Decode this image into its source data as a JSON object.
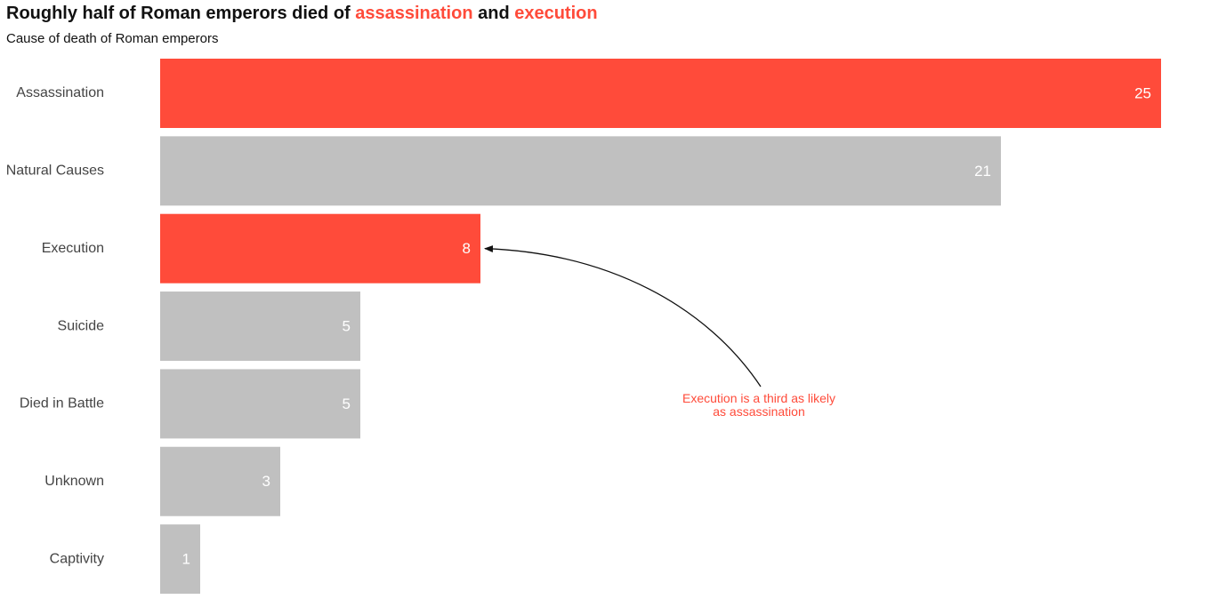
{
  "chart_data": {
    "type": "bar",
    "orientation": "horizontal",
    "title": {
      "parts": [
        {
          "text": "Roughly half of Roman emperors died of ",
          "highlight": false
        },
        {
          "text": "assassination",
          "highlight": true
        },
        {
          "text": " and ",
          "highlight": false
        },
        {
          "text": "execution",
          "highlight": true
        }
      ]
    },
    "subtitle": "Cause of death of Roman emperors",
    "categories": [
      "Assassination",
      "Natural Causes",
      "Execution",
      "Suicide",
      "Died in Battle",
      "Unknown",
      "Captivity"
    ],
    "values": [
      25,
      21,
      8,
      5,
      5,
      3,
      1
    ],
    "highlighted": [
      true,
      false,
      true,
      false,
      false,
      false,
      false
    ],
    "xlim": [
      0,
      25
    ],
    "grid": false,
    "annotation": {
      "target_category": "Execution",
      "text_lines": [
        "Execution is a third as likely",
        "as assassination"
      ]
    }
  },
  "colors": {
    "highlight": "#ff4b3a",
    "default": "#c0c0c0",
    "value_text": "#ffffff",
    "arrow": "#111111"
  }
}
